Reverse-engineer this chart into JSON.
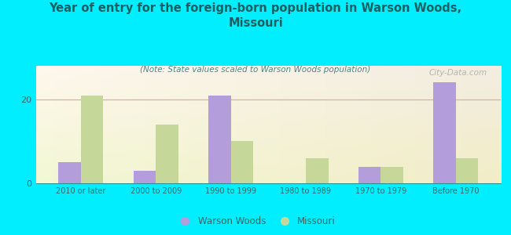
{
  "categories": [
    "2010 or later",
    "2000 to 2009",
    "1990 to 1999",
    "1980 to 1989",
    "1970 to 1979",
    "Before 1970"
  ],
  "warson_woods": [
    5,
    3,
    21,
    0,
    4,
    24
  ],
  "missouri": [
    21,
    14,
    10,
    6,
    4,
    6
  ],
  "warson_woods_color": "#b39ddb",
  "missouri_color": "#c5d89a",
  "title": "Year of entry for the foreign-born population in Warson Woods,\nMissouri",
  "subtitle": "(Note: State values scaled to Warson Woods population)",
  "legend_warson": "Warson Woods",
  "legend_missouri": "Missouri",
  "ylim": [
    0,
    28
  ],
  "yticks": [
    0,
    20
  ],
  "background_outer": "#00eeff",
  "title_color": "#1a6060",
  "subtitle_color": "#4a8888",
  "tick_color": "#336666",
  "watermark": "City-Data.com",
  "bar_width": 0.3,
  "grid_color": "#e8a0a0"
}
